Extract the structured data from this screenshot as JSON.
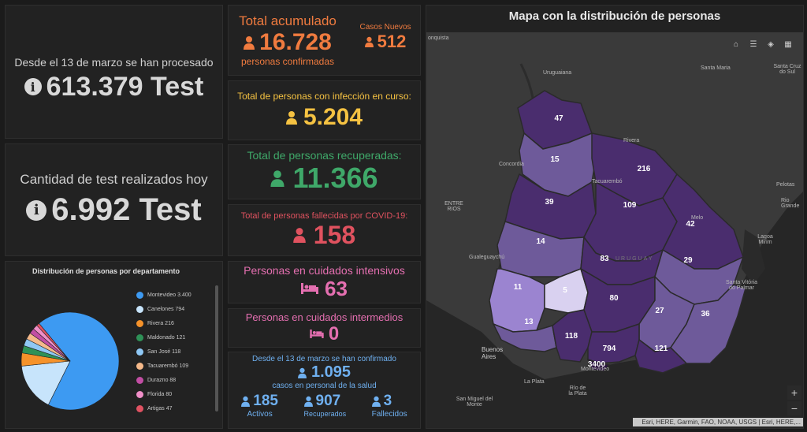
{
  "left_top": {
    "line1": "Desde el 13 de marzo se han procesado",
    "value": "613.379 Test"
  },
  "left_mid": {
    "line1": "Cantidad de test realizados hoy",
    "value": "6.992 Test"
  },
  "pie": {
    "title": "Distribución de personas por departamento",
    "items": [
      {
        "label": "Montevideo 3.400",
        "color": "#3d9af2"
      },
      {
        "label": "Canelones 794",
        "color": "#c7e4fb"
      },
      {
        "label": "Rivera 216",
        "color": "#f5922a"
      },
      {
        "label": "Maldonado 121",
        "color": "#2e9157"
      },
      {
        "label": "San José 118",
        "color": "#8fc8f5"
      },
      {
        "label": "Tacuarembó 109",
        "color": "#f5b98a"
      },
      {
        "label": "Durazno 88",
        "color": "#c24ea4"
      },
      {
        "label": "Florida 80",
        "color": "#f08fc8"
      },
      {
        "label": "Artigas 47",
        "color": "#e05262"
      }
    ]
  },
  "chart_data": {
    "type": "pie",
    "title": "Distribución de personas por departamento",
    "categories": [
      "Montevideo",
      "Canelones",
      "Rivera",
      "Maldonado",
      "San José",
      "Tacuarembó",
      "Durazno",
      "Florida",
      "Artigas"
    ],
    "values": [
      3400,
      794,
      216,
      121,
      118,
      109,
      88,
      80,
      47
    ]
  },
  "acumulado": {
    "title": "Total acumulado",
    "value": "16.728",
    "subtitle": "personas confirmadas",
    "nuevos_label": "Casos Nuevos",
    "nuevos_value": "512"
  },
  "en_curso": {
    "title": "Total de personas con infección en curso:",
    "value": "5.204"
  },
  "recuperadas": {
    "title": "Total de personas recuperadas:",
    "value": "11.366"
  },
  "fallecidas": {
    "title": "Total de personas fallecidas por COVID-19:",
    "value": "158"
  },
  "intensivos": {
    "title": "Personas en cuidados intensivos",
    "value": "63"
  },
  "intermedios": {
    "title": "Personas en cuidados intermedios",
    "value": "0"
  },
  "salud": {
    "line1": "Desde el 13 de marzo se han confirmado",
    "value": "1.095",
    "line2": "casos en personal de la salud",
    "activos_value": "185",
    "activos_label": "Activos",
    "recuperados_value": "907",
    "recuperados_label": "Recuperados",
    "fallecidos_value": "3",
    "fallecidos_label": "Fallecidos"
  },
  "map": {
    "title": "Mapa con la distribución de personas",
    "attribution": "Esri, HERE, Garmin, FAO, NOAA, USGS | Esri, HERE,...",
    "places": {
      "conquista": "onquista",
      "uruguaiana": "Uruguaiana",
      "santa_maria": "Santa Maria",
      "santa_cruz": "Santa Cruz do Sul",
      "rivera": "Rivera",
      "concordia": "Concordia",
      "tacuarembo": "Tacuarembó",
      "entre_rios": "ENTRE RIOS",
      "pelotas": "Pelotas",
      "rio_grande": "Rio Grande",
      "melo": "Melo",
      "lagoa": "Lagoa Mirim",
      "gualeguaychu": "Gualeguaychú",
      "uruguay": "URUGUAY",
      "santa_vitoria": "Santa Vitória do Palmar",
      "buenos_aires": "Buenos Aires",
      "montevideo": "Montevideo",
      "la_plata": "La Plata",
      "rio_plata": "Río de la Plata",
      "san_miguel": "San Miguel del Monte"
    },
    "departments": [
      "47",
      "15",
      "216",
      "39",
      "109",
      "42",
      "14",
      "83",
      "29",
      "11",
      "5",
      "80",
      "13",
      "27",
      "36",
      "118",
      "794",
      "121",
      "3400"
    ]
  }
}
